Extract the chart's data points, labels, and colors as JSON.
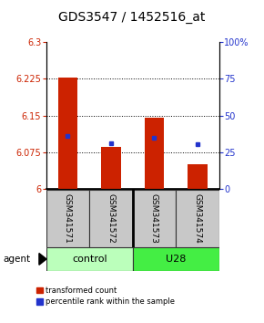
{
  "title": "GDS3547 / 1452516_at",
  "samples": [
    "GSM341571",
    "GSM341572",
    "GSM341573",
    "GSM341574"
  ],
  "bar_values": [
    6.228,
    6.085,
    6.145,
    6.05
  ],
  "bar_baseline": 6.0,
  "blue_marker_values": [
    6.108,
    6.093,
    6.105,
    6.092
  ],
  "ylim_left": [
    6.0,
    6.3
  ],
  "ylim_right": [
    0,
    100
  ],
  "yticks_left": [
    6.0,
    6.075,
    6.15,
    6.225,
    6.3
  ],
  "ytick_labels_left": [
    "6",
    "6.075",
    "6.15",
    "6.225",
    "6.3"
  ],
  "yticks_right": [
    0,
    25,
    50,
    75,
    100
  ],
  "ytick_labels_right": [
    "0",
    "25",
    "50",
    "75",
    "100%"
  ],
  "hlines": [
    6.075,
    6.15,
    6.225
  ],
  "bar_color": "#cc2200",
  "blue_color": "#2233cc",
  "group_labels": [
    "control",
    "U28"
  ],
  "group_ranges": [
    [
      0,
      2
    ],
    [
      2,
      4
    ]
  ],
  "group_color_control": "#bbffbb",
  "group_color_u28": "#44ee44",
  "bar_width": 0.45,
  "agent_label": "agent",
  "legend_red": "transformed count",
  "legend_blue": "percentile rank within the sample",
  "title_fontsize": 10,
  "tick_fontsize": 7,
  "sample_fontsize": 6.5,
  "group_fontsize": 8,
  "bottom_gray": "#c8c8c8"
}
